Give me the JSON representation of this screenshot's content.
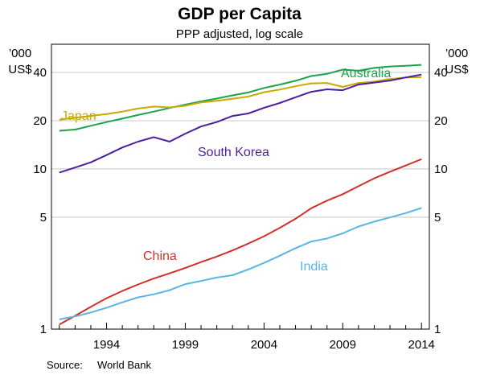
{
  "chart_data": {
    "type": "line",
    "title": "GDP per Capita",
    "subtitle": "PPP adjusted, log scale",
    "y_unit_left": [
      "’000",
      "US$"
    ],
    "y_unit_right": [
      "’000",
      "US$"
    ],
    "y_scale": "log",
    "ylim": [
      1,
      60
    ],
    "yticks": [
      1,
      5,
      10,
      20,
      40
    ],
    "xlim": [
      1990.5,
      2014.5
    ],
    "xticks": [
      1994,
      1999,
      2004,
      2009,
      2014
    ],
    "grid": true,
    "source_label": "Source:",
    "source_text": "World Bank",
    "x": [
      1991,
      1992,
      1993,
      1994,
      1995,
      1996,
      1997,
      1998,
      1999,
      2000,
      2001,
      2002,
      2003,
      2004,
      2005,
      2006,
      2007,
      2008,
      2009,
      2010,
      2011,
      2012,
      2013,
      2014
    ],
    "series": [
      {
        "name": "Australia",
        "color": "#1aa44a",
        "values": [
          17.3,
          17.6,
          18.6,
          19.6,
          20.6,
          21.7,
          22.8,
          24.0,
          25.2,
          26.4,
          27.5,
          28.8,
          30.0,
          32.0,
          33.6,
          35.5,
          38.0,
          39.2,
          41.7,
          41.0,
          42.7,
          43.6,
          44.0,
          44.6
        ]
      },
      {
        "name": "Japan",
        "color": "#c9a800",
        "values": [
          20.3,
          20.9,
          21.4,
          22.0,
          22.8,
          23.8,
          24.5,
          24.2,
          24.8,
          26.0,
          26.6,
          27.4,
          28.3,
          30.1,
          31.3,
          32.8,
          34.2,
          34.4,
          32.5,
          34.4,
          35.1,
          36.4,
          37.2,
          37.4
        ]
      },
      {
        "name": "South Korea",
        "color": "#4b1fa0",
        "values": [
          9.5,
          10.2,
          11.0,
          12.2,
          13.6,
          14.8,
          15.8,
          14.8,
          16.6,
          18.4,
          19.6,
          21.4,
          22.2,
          24.1,
          25.8,
          28.0,
          30.3,
          31.4,
          31.0,
          33.6,
          34.6,
          35.6,
          37.2,
          38.8
        ]
      },
      {
        "name": "China",
        "color": "#d2302b",
        "values": [
          1.07,
          1.21,
          1.38,
          1.56,
          1.73,
          1.9,
          2.07,
          2.23,
          2.41,
          2.62,
          2.84,
          3.1,
          3.42,
          3.8,
          4.29,
          4.88,
          5.68,
          6.34,
          6.96,
          7.8,
          8.74,
          9.6,
          10.5,
          11.5
        ]
      },
      {
        "name": "India",
        "color": "#57b6e4",
        "values": [
          1.15,
          1.2,
          1.27,
          1.36,
          1.47,
          1.58,
          1.65,
          1.75,
          1.91,
          2.0,
          2.1,
          2.17,
          2.36,
          2.59,
          2.87,
          3.2,
          3.52,
          3.68,
          3.96,
          4.37,
          4.69,
          4.98,
          5.3,
          5.7
        ]
      }
    ],
    "annotations": [
      "Australia",
      "Japan",
      "South Korea",
      "China",
      "India"
    ]
  }
}
